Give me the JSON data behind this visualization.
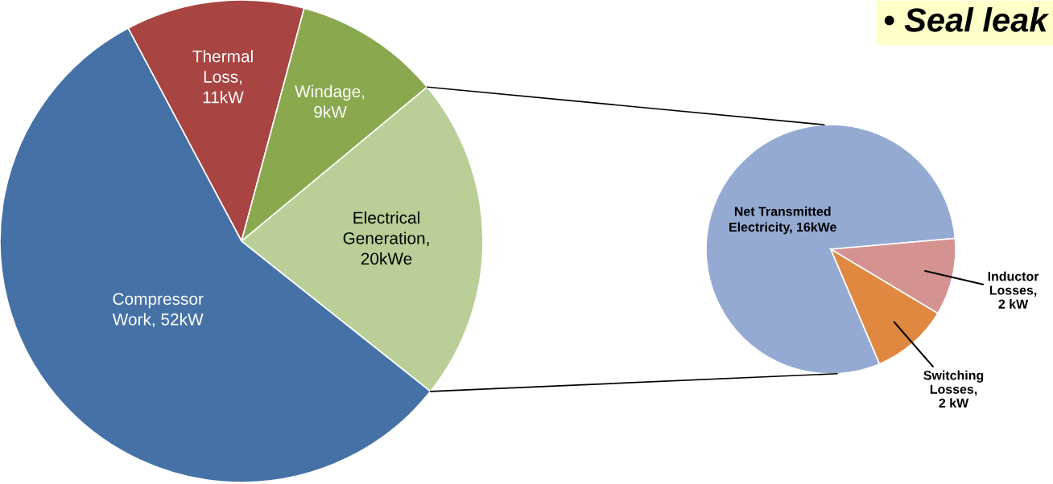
{
  "chart_data": [
    {
      "type": "pie",
      "categories": [
        "Thermal\nLoss,\n11kW",
        "Windage,\n9kW",
        "Electrical\nGeneration,\n20kWe",
        "Compressor\nWork, 52kW"
      ],
      "values": [
        11,
        9,
        20,
        52
      ],
      "colors": [
        "#a84442",
        "#8aa84e",
        "#b9cf97",
        "#4571a6"
      ]
    },
    {
      "type": "pie",
      "categories": [
        "Net Transmitted\nElectricity, 16kWe",
        "Inductor\nLosses,\n2 kW",
        "Switching\nLosses,\n2 kW"
      ],
      "values": [
        16,
        2,
        2
      ],
      "colors": [
        "#95aad3",
        "#d49391",
        "#e0883f"
      ],
      "annotations": [
        "• Seal leak"
      ]
    }
  ]
}
